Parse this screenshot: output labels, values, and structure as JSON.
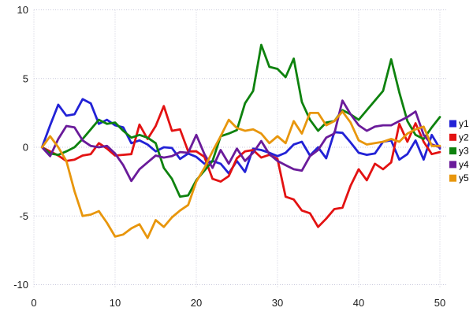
{
  "chart_data": {
    "type": "line",
    "title": "",
    "xlabel": "",
    "ylabel": "",
    "xlim": [
      0,
      50.8
    ],
    "ylim": [
      -10,
      10
    ],
    "x_ticks": [
      0,
      10,
      20,
      30,
      40,
      50
    ],
    "y_ticks": [
      -10,
      -5,
      0,
      5,
      10
    ],
    "grid": true,
    "grid_style": "dotted",
    "legend_position": "right-outside",
    "x": [
      1,
      2,
      3,
      4,
      5,
      6,
      7,
      8,
      9,
      10,
      11,
      12,
      13,
      14,
      15,
      16,
      17,
      18,
      19,
      20,
      21,
      22,
      23,
      24,
      25,
      26,
      27,
      28,
      29,
      30,
      31,
      32,
      33,
      34,
      35,
      36,
      37,
      38,
      39,
      40,
      41,
      42,
      43,
      44,
      45,
      46,
      47,
      48,
      49,
      50
    ],
    "series": [
      {
        "name": "y1",
        "color": "#2222d6",
        "values": [
          0,
          1.6,
          3.1,
          2.3,
          2.4,
          3.5,
          3.2,
          1.7,
          2.0,
          1.6,
          1.45,
          0.3,
          0.5,
          0.2,
          -0.3,
          0.0,
          -0.05,
          -0.85,
          -0.45,
          -0.7,
          -1.2,
          -1.0,
          -1.2,
          -1.9,
          -1.0,
          -1.8,
          -0.1,
          -0.2,
          -0.4,
          -0.65,
          -0.4,
          0.2,
          0.4,
          -0.6,
          0.0,
          -0.8,
          1.1,
          1.05,
          0.35,
          -0.4,
          -0.55,
          -0.45,
          0.4,
          0.5,
          -0.9,
          -0.5,
          0.5,
          -0.9,
          0.9,
          -0.1
        ]
      },
      {
        "name": "y2",
        "color": "#e31212",
        "values": [
          0,
          -0.3,
          -0.6,
          -1.0,
          -0.9,
          -0.6,
          -0.5,
          0.3,
          -0.1,
          -0.6,
          -0.55,
          -0.5,
          1.65,
          0.6,
          1.55,
          3.0,
          1.2,
          1.3,
          -0.3,
          -0.3,
          -0.7,
          -2.3,
          -2.5,
          -2.1,
          -0.8,
          -0.3,
          -0.2,
          -0.75,
          -0.55,
          -0.85,
          -3.6,
          -3.8,
          -4.6,
          -4.8,
          -5.8,
          -5.2,
          -4.5,
          -4.4,
          -2.8,
          -1.6,
          -2.4,
          -1.2,
          -1.6,
          -1.1,
          1.7,
          0.4,
          1.75,
          0.4,
          -0.5,
          -0.35
        ]
      },
      {
        "name": "y3",
        "color": "#0e820e",
        "values": [
          0,
          -0.45,
          -0.55,
          -0.3,
          0.0,
          0.6,
          1.3,
          2.0,
          1.7,
          1.8,
          1.2,
          0.7,
          0.9,
          0.7,
          0.3,
          -1.5,
          -2.3,
          -3.6,
          -3.5,
          -2.4,
          -1.7,
          -1.0,
          0.8,
          1.0,
          1.25,
          3.2,
          4.1,
          7.45,
          5.85,
          5.7,
          5.1,
          6.45,
          3.3,
          2.0,
          1.2,
          1.8,
          1.9,
          2.7,
          2.4,
          2.0,
          2.7,
          3.4,
          4.1,
          6.4,
          4.0,
          1.9,
          0.9,
          0.6,
          1.45,
          2.2
        ]
      },
      {
        "name": "y4",
        "color": "#6a1b9a",
        "values": [
          0,
          -0.65,
          0.6,
          1.55,
          1.45,
          0.5,
          0.1,
          0.0,
          0.1,
          -0.45,
          -1.3,
          -2.45,
          -1.6,
          -1.1,
          -0.6,
          -0.75,
          -0.65,
          -0.35,
          -0.4,
          0.9,
          -0.5,
          -1.5,
          -0.2,
          -1.2,
          -0.1,
          -1.0,
          -0.4,
          0.45,
          -0.5,
          -1.0,
          -1.3,
          -1.6,
          -1.7,
          -0.65,
          -0.2,
          0.7,
          1.0,
          3.4,
          2.4,
          1.6,
          1.2,
          1.5,
          1.6,
          1.6,
          1.9,
          2.2,
          2.6,
          0.9,
          0.2,
          0.0
        ]
      },
      {
        "name": "y5",
        "color": "#e8960c",
        "values": [
          0,
          0.8,
          0.0,
          -1.0,
          -3.2,
          -5.0,
          -4.9,
          -4.65,
          -5.5,
          -6.5,
          -6.35,
          -5.9,
          -5.6,
          -6.6,
          -5.3,
          -5.8,
          -5.1,
          -4.6,
          -4.2,
          -2.5,
          -1.5,
          -0.3,
          0.8,
          2.0,
          1.4,
          1.2,
          1.3,
          1.0,
          0.3,
          0.8,
          0.3,
          1.9,
          1.0,
          2.5,
          2.5,
          1.6,
          1.9,
          2.6,
          1.8,
          0.5,
          0.2,
          0.3,
          0.4,
          0.6,
          0.4,
          1.0,
          1.3,
          1.5,
          0.1,
          0.1
        ]
      }
    ],
    "legend_items": [
      "y1",
      "y2",
      "y3",
      "y4",
      "y5"
    ]
  },
  "style": {
    "background": "#ffffff",
    "grid_color": "#c9c9dc",
    "tick_label_color": "#1a1a1a",
    "legend_text_color": "#000000"
  }
}
